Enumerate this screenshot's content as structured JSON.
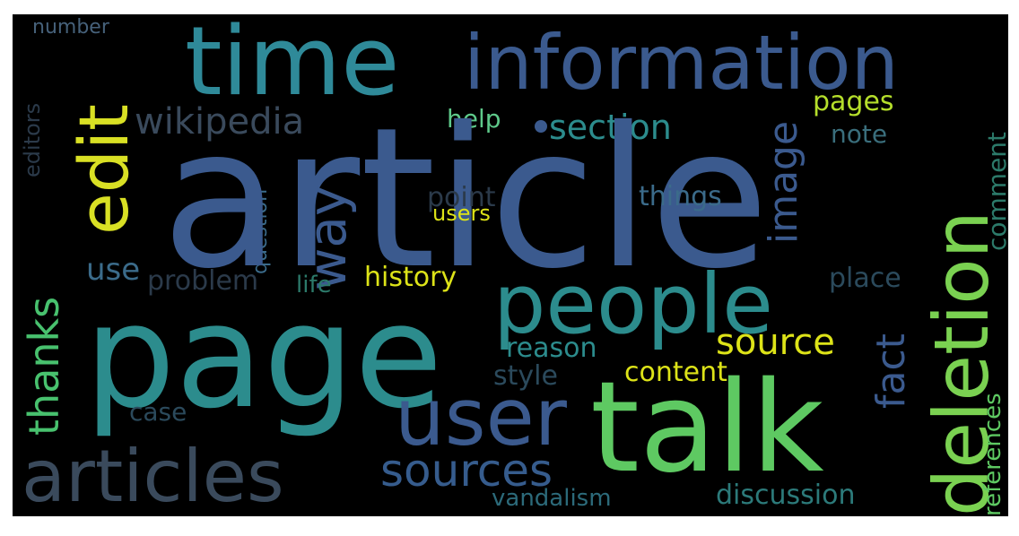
{
  "colors": {
    "background": "#000000",
    "frame": "#ffffff",
    "navy": "#46337e",
    "blue": "#3b5a8e",
    "steel": "#365c8d",
    "teal": "#2c8c8d",
    "cyan": "#21918c",
    "green": "#5ec962",
    "lime": "#7ad151",
    "yellow": "#dde318",
    "slate": "#3a4a5c"
  },
  "words": [
    {
      "text": "number",
      "color": "#46617a"
    },
    {
      "text": "time",
      "color": "#2f8a99"
    },
    {
      "text": "information",
      "color": "#3b5a8e"
    },
    {
      "text": "edit",
      "color": "#d9e024"
    },
    {
      "text": "wikipedia",
      "color": "#3a4a5c"
    },
    {
      "text": "help",
      "color": "#5ec98a"
    },
    {
      "text": "section",
      "color": "#2c8c8d"
    },
    {
      "text": "image",
      "color": "#3b5a8e"
    },
    {
      "text": "pages",
      "color": "#b5de2b"
    },
    {
      "text": "note",
      "color": "#3a6e7c"
    },
    {
      "text": "editors",
      "color": "#2b3a4a"
    },
    {
      "text": "question",
      "color": "#3b6b8a"
    },
    {
      "text": "article",
      "color": "#3b5a8e"
    },
    {
      "text": "way",
      "color": "#3b5a8e"
    },
    {
      "text": "point",
      "color": "#2b3a4a"
    },
    {
      "text": "users",
      "color": "#dde318"
    },
    {
      "text": "things",
      "color": "#3b6b8a"
    },
    {
      "text": "deletion",
      "color": "#7ad151"
    },
    {
      "text": "comment",
      "color": "#2c7a6a"
    },
    {
      "text": "thanks",
      "color": "#48c16e"
    },
    {
      "text": "use",
      "color": "#3b6b8a"
    },
    {
      "text": "problem",
      "color": "#2b3a4a"
    },
    {
      "text": "life",
      "color": "#2c7a6a"
    },
    {
      "text": "history",
      "color": "#dde318"
    },
    {
      "text": "place",
      "color": "#2b4a5c"
    },
    {
      "text": "people",
      "color": "#2c8c8d"
    },
    {
      "text": "page",
      "color": "#2c8c8d"
    },
    {
      "text": "source",
      "color": "#dde318"
    },
    {
      "text": "fact",
      "color": "#3b5a8e"
    },
    {
      "text": "references",
      "color": "#5ec962"
    },
    {
      "text": "reason",
      "color": "#2c8c8d"
    },
    {
      "text": "style",
      "color": "#2b4a5c"
    },
    {
      "text": "content",
      "color": "#dde318"
    },
    {
      "text": "user",
      "color": "#3b5a8e"
    },
    {
      "text": "case",
      "color": "#2b4a5c"
    },
    {
      "text": "talk",
      "color": "#5ec962"
    },
    {
      "text": "articles",
      "color": "#3a4a5c"
    },
    {
      "text": "sources",
      "color": "#365c8d"
    },
    {
      "text": "vandalism",
      "color": "#2c6a7a"
    },
    {
      "text": "discussion",
      "color": "#2c7a7a"
    }
  ]
}
